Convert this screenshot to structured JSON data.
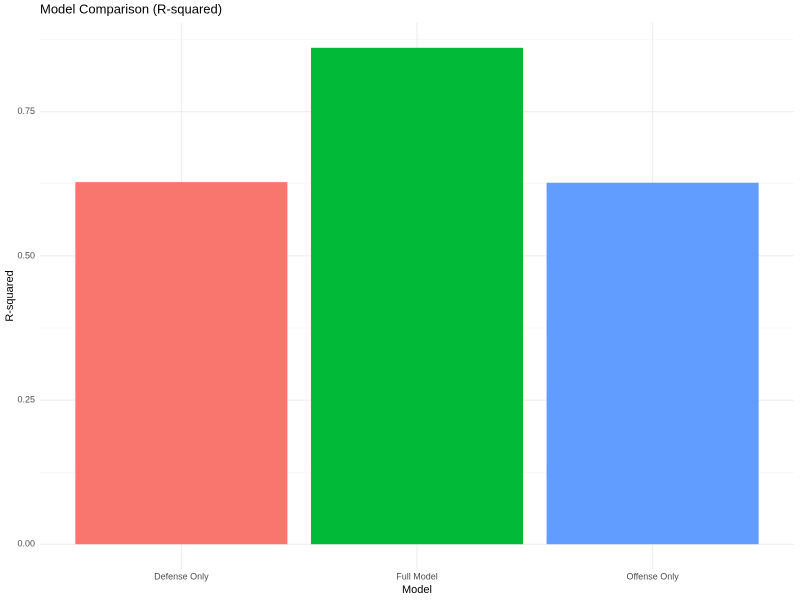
{
  "chart_data": {
    "type": "bar",
    "title": "Model Comparison (R-squared)",
    "x_label": "Model",
    "y_label": "R-squared",
    "categories": [
      "Defense Only",
      "Full Model",
      "Offense Only"
    ],
    "values": [
      0.628,
      0.861,
      0.627
    ],
    "colors": [
      "#f8766d",
      "#00ba38",
      "#619cff"
    ],
    "ylim": [
      -0.043,
      0.904
    ],
    "yticks": [
      {
        "value": 0,
        "label": "0.00"
      },
      {
        "value": 0.25,
        "label": "0.25"
      },
      {
        "value": 0.5,
        "label": "0.50"
      },
      {
        "value": 0.75,
        "label": "0.75"
      }
    ],
    "minor_yticks": [
      0.125,
      0.375,
      0.625,
      0.875
    ],
    "grid": true
  }
}
